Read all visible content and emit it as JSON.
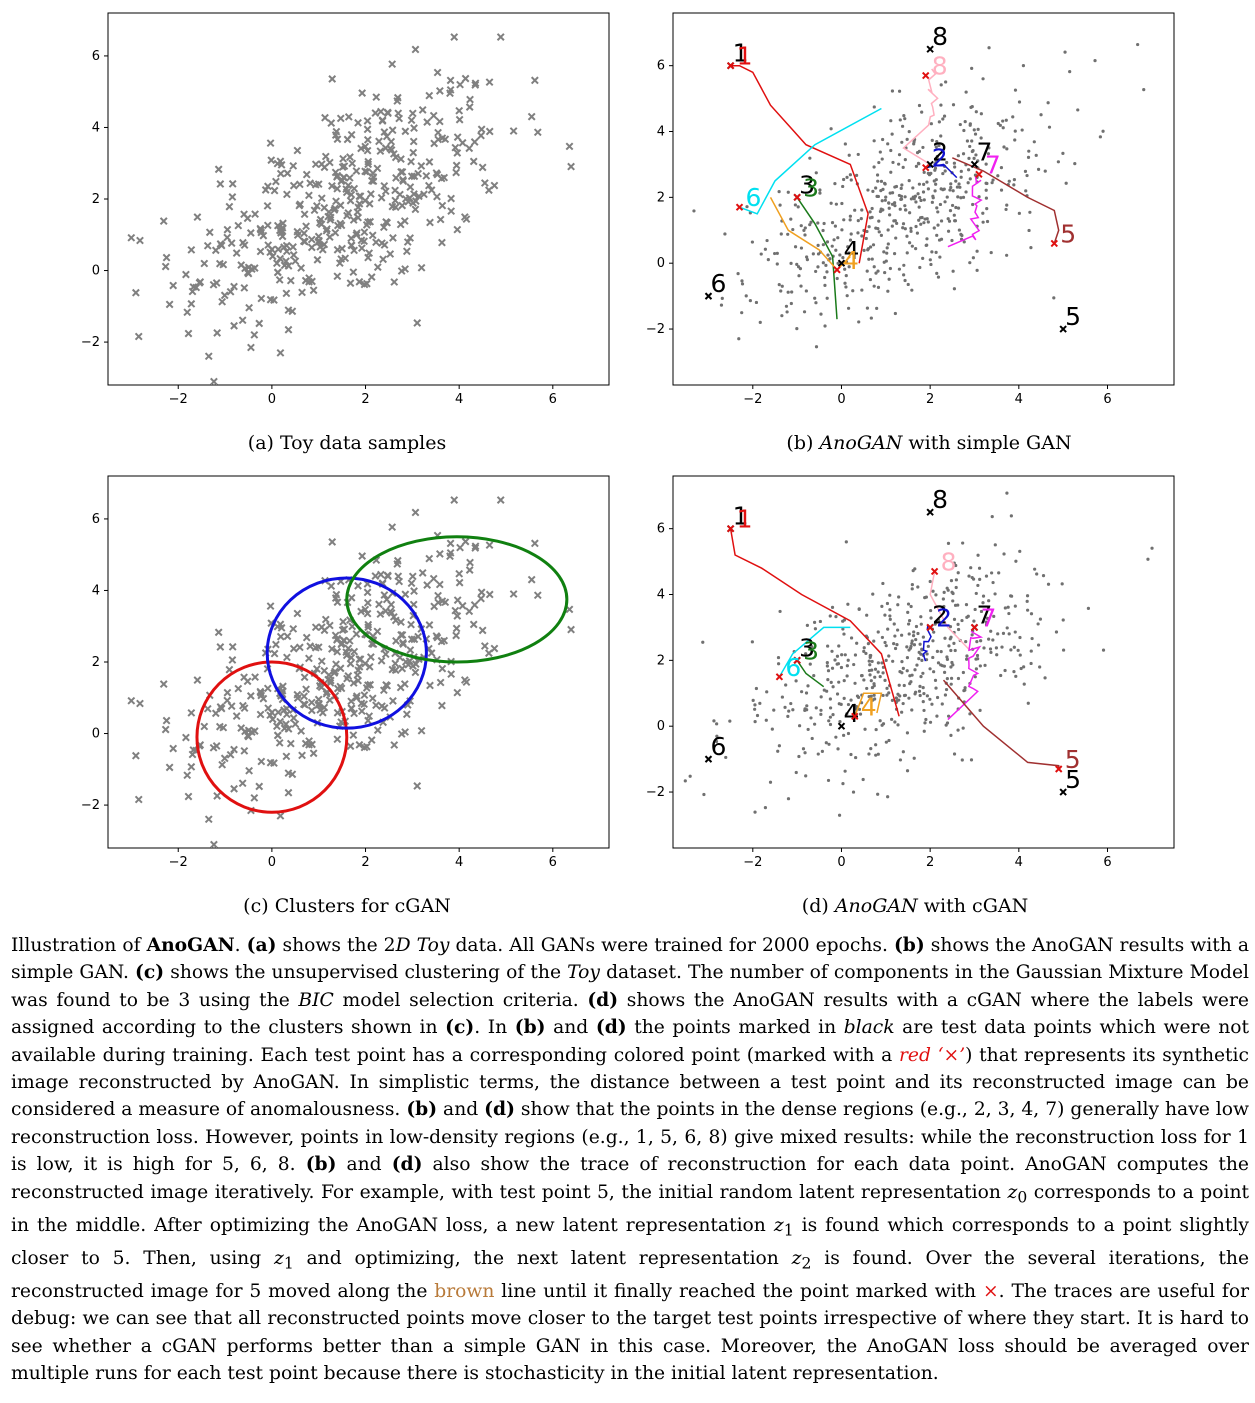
{
  "figure": {
    "panels": [
      {
        "id": "a",
        "caption_label": "(a)",
        "caption_text": "Toy data samples"
      },
      {
        "id": "b",
        "caption_label": "(b)",
        "caption_italic": "AnoGAN",
        "caption_text": "with simple GAN"
      },
      {
        "id": "c",
        "caption_label": "(c)",
        "caption_text": "Clusters for cGAN"
      },
      {
        "id": "d",
        "caption_label": "(d)",
        "caption_italic": "AnoGAN",
        "caption_text": "with cGAN"
      }
    ]
  },
  "chart_data": [
    {
      "type": "scatter",
      "panel": "a",
      "title": "Toy data samples",
      "xlim": [
        -3.5,
        7.2
      ],
      "ylim": [
        -3.2,
        7.2
      ],
      "xticks": [
        "−2",
        "0",
        "2",
        "4",
        "6"
      ],
      "yticks": [
        "−2",
        "0",
        "2",
        "4",
        "6"
      ],
      "marker": "x",
      "color": "#808080",
      "description_points": "~400 samples from 2D Gaussian centered near (1.5,1.8)"
    },
    {
      "type": "scatter",
      "panel": "b",
      "xlim": [
        -3.8,
        7.5
      ],
      "ylim": [
        -3.7,
        7.6
      ],
      "xticks": [
        "−2",
        "0",
        "2",
        "4",
        "6"
      ],
      "yticks": [
        "−2",
        "0",
        "2",
        "4",
        "6"
      ],
      "test_points": [
        {
          "label": "1",
          "x": -2.5,
          "y": 6.0
        },
        {
          "label": "2",
          "x": 2.0,
          "y": 3.0
        },
        {
          "label": "3",
          "x": -1.0,
          "y": 2.0
        },
        {
          "label": "4",
          "x": 0.0,
          "y": 0.0
        },
        {
          "label": "5",
          "x": 5.0,
          "y": -2.0
        },
        {
          "label": "6",
          "x": -3.0,
          "y": -1.0
        },
        {
          "label": "7",
          "x": 3.0,
          "y": 3.0
        },
        {
          "label": "8",
          "x": 2.0,
          "y": 6.5
        }
      ],
      "reconstructions": [
        {
          "label": "1",
          "x": -2.5,
          "y": 6.0,
          "color": "#e01010"
        },
        {
          "label": "2",
          "x": 1.9,
          "y": 2.9,
          "color": "#1010d0"
        },
        {
          "label": "3",
          "x": -1.0,
          "y": 2.0,
          "color": "#1a7a1a"
        },
        {
          "label": "4",
          "x": -0.1,
          "y": -0.2,
          "color": "#f0a020"
        },
        {
          "label": "5",
          "x": 4.8,
          "y": 0.6,
          "color": "#a03030"
        },
        {
          "label": "6",
          "x": -2.3,
          "y": 1.7,
          "color": "#00e0f0"
        },
        {
          "label": "7",
          "x": 3.1,
          "y": 2.7,
          "color": "#f020f0"
        },
        {
          "label": "8",
          "x": 1.9,
          "y": 5.7,
          "color": "#ffb0c0"
        }
      ]
    },
    {
      "type": "scatter",
      "panel": "c",
      "xlim": [
        -3.5,
        7.2
      ],
      "ylim": [
        -3.2,
        7.2
      ],
      "xticks": [
        "−2",
        "0",
        "2",
        "4",
        "6"
      ],
      "yticks": [
        "−2",
        "0",
        "2",
        "4",
        "6"
      ],
      "clusters": [
        {
          "color": "#e01010",
          "cx": 0.0,
          "cy": -0.1,
          "rx": 1.6,
          "ry": 2.1
        },
        {
          "color": "#1010e0",
          "cx": 1.6,
          "cy": 2.25,
          "rx": 1.7,
          "ry": 2.1
        },
        {
          "color": "#108010",
          "cx": 3.95,
          "cy": 3.75,
          "rx": 2.35,
          "ry": 1.75
        }
      ]
    },
    {
      "type": "scatter",
      "panel": "d",
      "xlim": [
        -3.8,
        7.5
      ],
      "ylim": [
        -3.7,
        7.6
      ],
      "xticks": [
        "−2",
        "0",
        "2",
        "4",
        "6"
      ],
      "yticks": [
        "−2",
        "0",
        "2",
        "4",
        "6"
      ],
      "test_points": [
        {
          "label": "1",
          "x": -2.5,
          "y": 6.0
        },
        {
          "label": "2",
          "x": 2.0,
          "y": 3.0
        },
        {
          "label": "3",
          "x": -1.0,
          "y": 2.0
        },
        {
          "label": "4",
          "x": 0.0,
          "y": 0.0
        },
        {
          "label": "5",
          "x": 5.0,
          "y": -2.0
        },
        {
          "label": "6",
          "x": -3.0,
          "y": -1.0
        },
        {
          "label": "7",
          "x": 3.0,
          "y": 3.0
        },
        {
          "label": "8",
          "x": 2.0,
          "y": 6.5
        }
      ],
      "reconstructions": [
        {
          "label": "1",
          "x": -2.5,
          "y": 6.0,
          "color": "#e01010"
        },
        {
          "label": "2",
          "x": 2.0,
          "y": 3.0,
          "color": "#1010d0"
        },
        {
          "label": "3",
          "x": -1.0,
          "y": 2.0,
          "color": "#1a7a1a"
        },
        {
          "label": "4",
          "x": 0.3,
          "y": 0.3,
          "color": "#f0a020"
        },
        {
          "label": "5",
          "x": 4.9,
          "y": -1.3,
          "color": "#a03030"
        },
        {
          "label": "6",
          "x": -1.4,
          "y": 1.5,
          "color": "#00e0f0"
        },
        {
          "label": "7",
          "x": 3.0,
          "y": 3.0,
          "color": "#f020f0"
        },
        {
          "label": "8",
          "x": 2.1,
          "y": 4.7,
          "color": "#ffb0c0"
        }
      ]
    }
  ],
  "paragraph": {
    "lines": [
      "Illustration of AnoGAN. (a) shows the 2D Toy data. All GANs were trained for 2000 epochs. (b) shows the AnoGAN results with a simple GAN. (c) shows the unsupervised clustering of the Toy dataset. The number of components in the Gaussian Mixture Model was found to be 3 using the BIC model selection criteria. (d) shows the AnoGAN results with a cGAN where the labels were assigned according to the clusters shown in (c). In (b) and (d) the points marked in black are test data points which were not available during training. Each test point has a corresponding colored point (marked with a red ‘×’) that represents its synthetic image reconstructed by AnoGAN. In simplistic terms, the distance between a test point and its reconstructed image can be considered a measure of anomalousness. (b) and (d) show that the points in the dense regions (e.g., 2, 3, 4, 7) generally have low reconstruction loss. However, points in low-density regions (e.g., 1, 5, 6, 8) give mixed results: while the reconstruction loss for 1 is low, it is high for 5, 6, 8. (b) and (d) also show the trace of reconstruction for each data point. AnoGAN computes the reconstructed image iteratively. For example, with test point 5, the initial random latent representation z0 corresponds to a point in the middle. After optimizing the AnoGAN loss, a new latent representation z1 is found which corresponds to a point slightly closer to 5. Then, using z1 and optimizing, the next latent representation z2 is found. Over the several iterations, the reconstructed image for 5 moved along the brown line until it finally reached the point marked with ×. The traces are useful for debug: we can see that all reconstructed points move closer to the target test points irrespective of where they start. It is hard to see whether a cGAN performs better than a simple GAN in this case. Moreover, the AnoGAN loss should be averaged over multiple runs for each test point because there is stochasticity in the initial latent representation."
    ]
  }
}
